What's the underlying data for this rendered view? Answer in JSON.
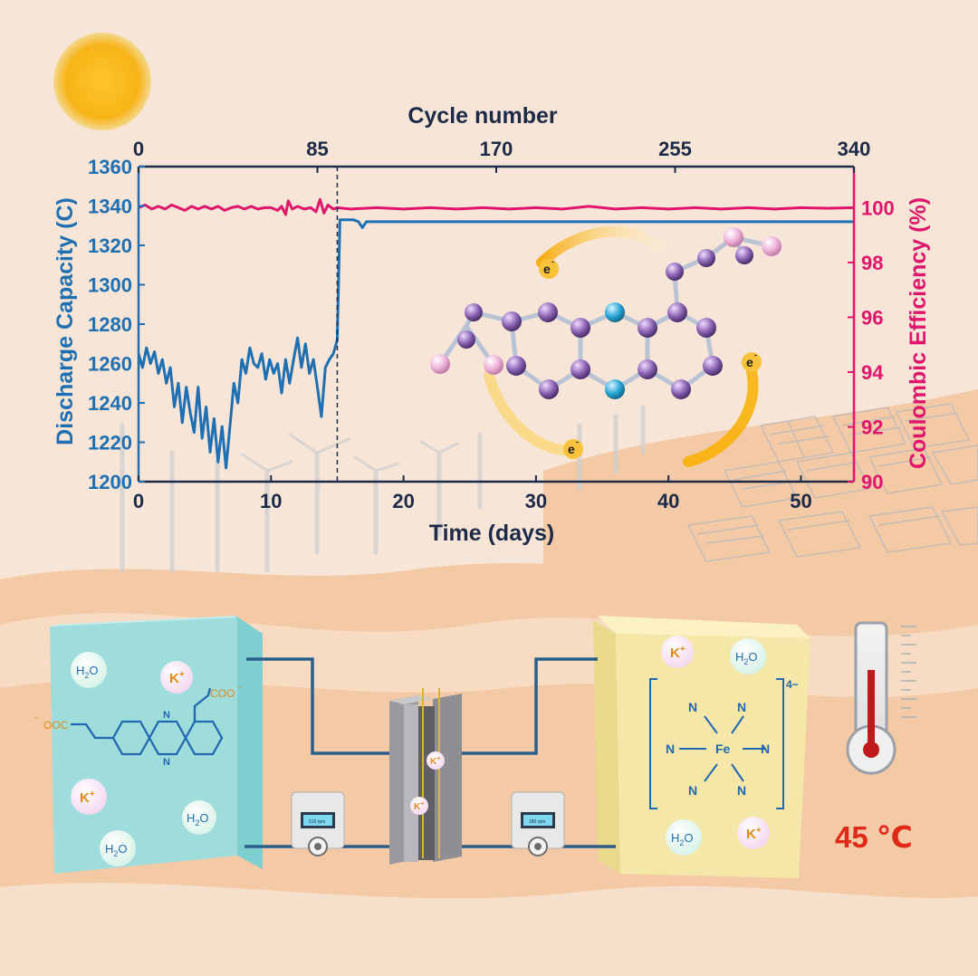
{
  "chart_data": {
    "type": "line",
    "title": "",
    "xlabel": "Time (days)",
    "x2label": "Cycle number",
    "ylabel": "Discharge Capacity (C)",
    "y2label": "Coulombic Efficiency (%)",
    "xlim": [
      0,
      54
    ],
    "x2lim": [
      0,
      340
    ],
    "ylim": [
      1200,
      1360
    ],
    "y2lim": [
      90,
      101.5
    ],
    "xticks": [
      "0",
      "10",
      "20",
      "30",
      "40",
      "50"
    ],
    "x2ticks": [
      "0",
      "85",
      "170",
      "255",
      "340"
    ],
    "yticks": [
      "1200",
      "1220",
      "1240",
      "1260",
      "1280",
      "1300",
      "1320",
      "1340",
      "1360"
    ],
    "y2ticks": [
      "90",
      "92",
      "94",
      "96",
      "98",
      "100"
    ],
    "divider_x_days": 15,
    "grid": false,
    "series": [
      {
        "name": "Discharge Capacity (C)",
        "axis": "left",
        "color": "#1f6fb3",
        "points": [
          [
            0.0,
            1265
          ],
          [
            0.3,
            1258
          ],
          [
            0.6,
            1268
          ],
          [
            0.9,
            1260
          ],
          [
            1.2,
            1266
          ],
          [
            1.5,
            1255
          ],
          [
            1.8,
            1262
          ],
          [
            2.1,
            1250
          ],
          [
            2.4,
            1258
          ],
          [
            2.7,
            1238
          ],
          [
            3.0,
            1250
          ],
          [
            3.3,
            1230
          ],
          [
            3.6,
            1248
          ],
          [
            3.9,
            1235
          ],
          [
            4.2,
            1225
          ],
          [
            4.5,
            1248
          ],
          [
            4.8,
            1222
          ],
          [
            5.1,
            1238
          ],
          [
            5.4,
            1215
          ],
          [
            5.7,
            1232
          ],
          [
            6.0,
            1210
          ],
          [
            6.3,
            1228
          ],
          [
            6.6,
            1207
          ],
          [
            6.9,
            1228
          ],
          [
            7.2,
            1250
          ],
          [
            7.5,
            1240
          ],
          [
            7.8,
            1262
          ],
          [
            8.1,
            1255
          ],
          [
            8.4,
            1268
          ],
          [
            8.7,
            1260
          ],
          [
            9.0,
            1258
          ],
          [
            9.3,
            1265
          ],
          [
            9.6,
            1252
          ],
          [
            9.9,
            1262
          ],
          [
            10.2,
            1255
          ],
          [
            10.5,
            1260
          ],
          [
            10.8,
            1245
          ],
          [
            11.1,
            1262
          ],
          [
            11.4,
            1250
          ],
          [
            11.7,
            1262
          ],
          [
            12.0,
            1273
          ],
          [
            12.3,
            1258
          ],
          [
            12.6,
            1270
          ],
          [
            12.9,
            1255
          ],
          [
            13.2,
            1262
          ],
          [
            13.5,
            1248
          ],
          [
            13.8,
            1233
          ],
          [
            14.1,
            1258
          ],
          [
            14.4,
            1262
          ],
          [
            14.7,
            1265
          ],
          [
            15.0,
            1272
          ],
          [
            15.2,
            1333
          ],
          [
            16.2,
            1333
          ],
          [
            16.6,
            1332
          ],
          [
            16.9,
            1329
          ],
          [
            17.2,
            1332
          ],
          [
            18.0,
            1332
          ],
          [
            22.0,
            1332
          ],
          [
            26.0,
            1332
          ],
          [
            30.0,
            1332
          ],
          [
            34.0,
            1332
          ],
          [
            38.0,
            1332
          ],
          [
            42.0,
            1332
          ],
          [
            46.0,
            1332
          ],
          [
            50.0,
            1332
          ],
          [
            54.0,
            1332
          ]
        ]
      },
      {
        "name": "Coulombic Efficiency (%)",
        "axis": "right",
        "color": "#e0156c",
        "points": [
          [
            0.0,
            100.0
          ],
          [
            0.5,
            100.1
          ],
          [
            1.0,
            99.95
          ],
          [
            1.5,
            100.05
          ],
          [
            2.0,
            99.95
          ],
          [
            2.5,
            100.1
          ],
          [
            3.0,
            100.0
          ],
          [
            3.5,
            99.9
          ],
          [
            4.0,
            100.05
          ],
          [
            4.5,
            99.95
          ],
          [
            5.0,
            100.05
          ],
          [
            5.5,
            99.95
          ],
          [
            6.0,
            100.05
          ],
          [
            6.5,
            99.9
          ],
          [
            7.0,
            100.0
          ],
          [
            7.5,
            100.05
          ],
          [
            8.0,
            99.95
          ],
          [
            8.5,
            100.05
          ],
          [
            9.0,
            99.95
          ],
          [
            9.5,
            100.0
          ],
          [
            10.0,
            100.0
          ],
          [
            10.5,
            99.9
          ],
          [
            10.8,
            100.05
          ],
          [
            11.1,
            99.75
          ],
          [
            11.3,
            100.25
          ],
          [
            11.6,
            99.95
          ],
          [
            12.0,
            100.05
          ],
          [
            12.5,
            99.95
          ],
          [
            13.0,
            100.0
          ],
          [
            13.4,
            99.85
          ],
          [
            13.7,
            100.3
          ],
          [
            14.0,
            99.8
          ],
          [
            14.3,
            100.1
          ],
          [
            14.7,
            99.95
          ],
          [
            15.0,
            100.0
          ],
          [
            16.0,
            99.95
          ],
          [
            18.0,
            100.0
          ],
          [
            20.0,
            99.95
          ],
          [
            22.0,
            100.0
          ],
          [
            24.0,
            99.95
          ],
          [
            26.0,
            100.0
          ],
          [
            28.0,
            99.95
          ],
          [
            30.0,
            100.0
          ],
          [
            32.0,
            99.95
          ],
          [
            34.0,
            100.05
          ],
          [
            36.0,
            99.95
          ],
          [
            38.0,
            100.0
          ],
          [
            40.0,
            99.95
          ],
          [
            42.0,
            100.0
          ],
          [
            44.0,
            99.95
          ],
          [
            46.0,
            100.0
          ],
          [
            48.0,
            99.95
          ],
          [
            50.0,
            100.0
          ],
          [
            52.0,
            99.98
          ],
          [
            54.0,
            100.0
          ]
        ]
      }
    ]
  },
  "molecule_labels": {
    "electron": "e",
    "electron_sup": "-"
  },
  "illustration": {
    "left_tank": {
      "water": "H",
      "water_sub": "2",
      "water_end": "O",
      "potassium": "K",
      "potassium_sup": "+",
      "carboxylate": "COO",
      "carboxylate_sup": "−",
      "carboxylate_left": "OOC",
      "carboxylate_left_sup": "−"
    },
    "right_tank": {
      "iron": "Fe",
      "nitrogen": "N",
      "charge": "4−"
    },
    "pump_left": "510 rpm",
    "pump_right": "180 rpm",
    "temperature": "45 ℃"
  },
  "colors": {
    "capacity": "#1f6fb3",
    "efficiency": "#e0156c",
    "axis": "#1c2a48",
    "sun": "#f6b418",
    "tank_left": "#9fdcdc",
    "tank_right": "#f4e7a8"
  }
}
